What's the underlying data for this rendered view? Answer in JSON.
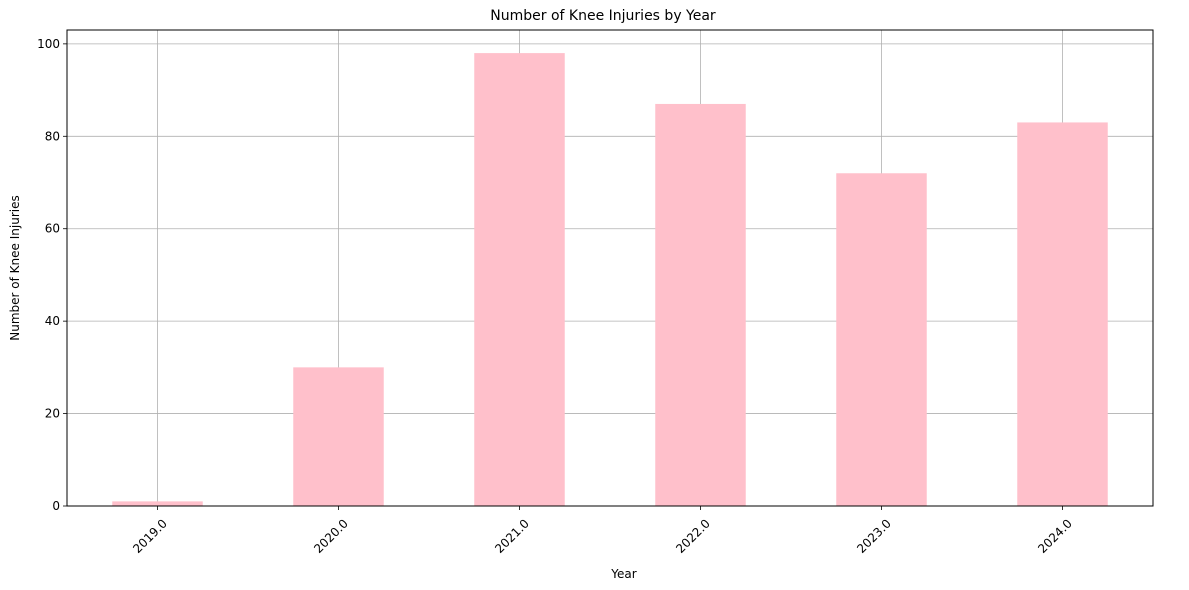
{
  "chart_data": {
    "type": "bar",
    "title": "Number of Knee Injuries by Year",
    "xlabel": "Year",
    "ylabel": "Number of Knee Injuries",
    "categories": [
      "2019.0",
      "2020.0",
      "2021.0",
      "2022.0",
      "2023.0",
      "2024.0"
    ],
    "values": [
      1,
      30,
      98,
      87,
      72,
      83
    ],
    "ylim": [
      0,
      103
    ],
    "yticks": [
      0,
      20,
      40,
      60,
      80,
      100
    ],
    "grid": true,
    "legend": "none",
    "bar_color": "#ffc0cb",
    "grid_color": "#b0b0b0"
  }
}
